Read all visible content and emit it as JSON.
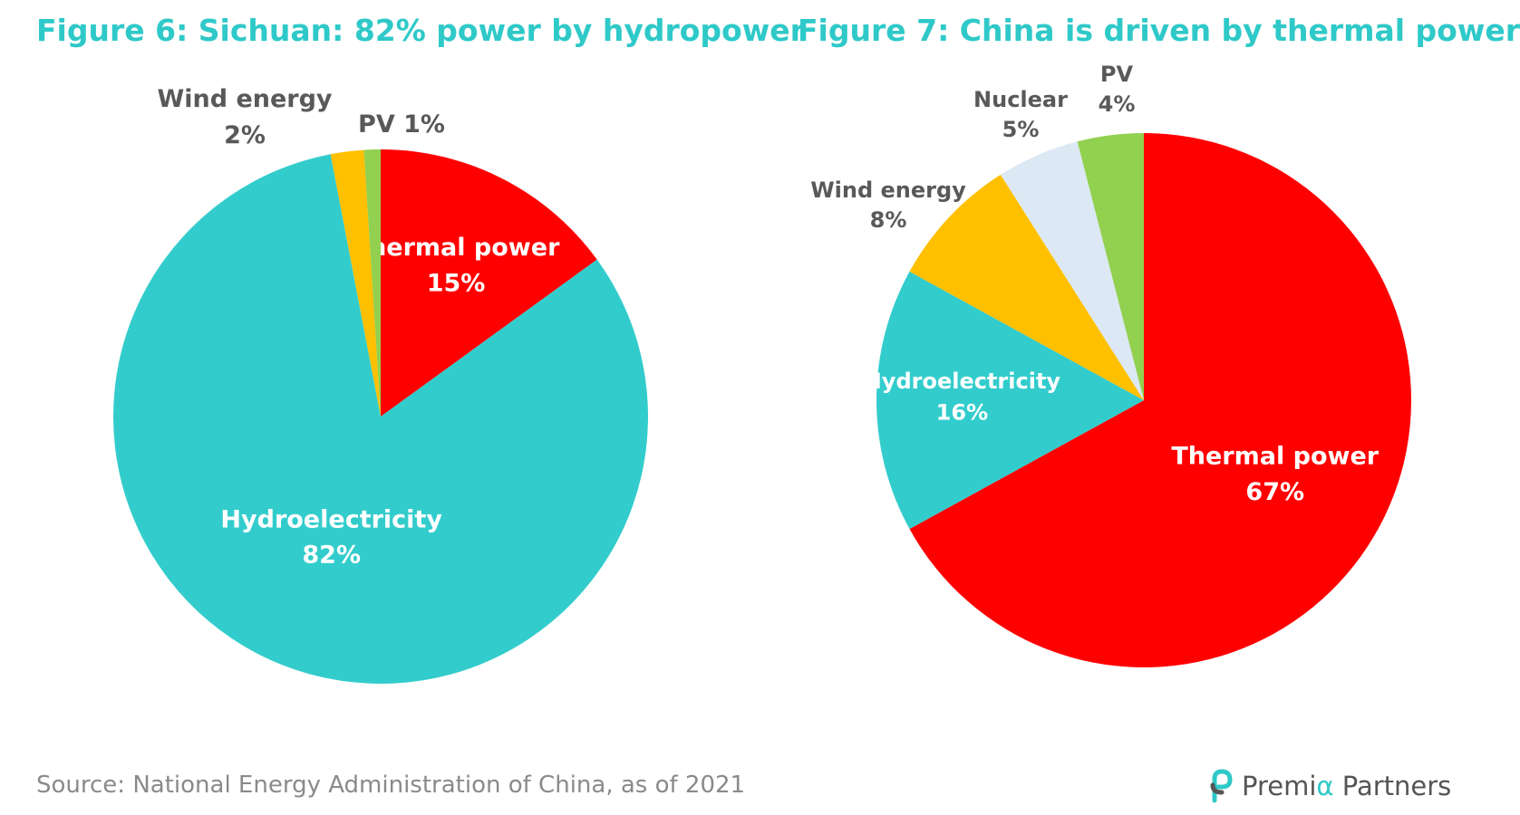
{
  "colors": {
    "title": "#2ec9c8",
    "thermal": "#ff0000",
    "hydro": "#33cccc",
    "wind": "#ffc000",
    "nuclear": "#dde8f5",
    "pv": "#92d050",
    "label_dark": "#595959",
    "label_light": "#ffffff"
  },
  "chart_data": [
    {
      "type": "pie",
      "title": "Figure 6: Sichuan: 82% power by hydropower",
      "unit": "%",
      "slices": [
        {
          "name": "Thermal power",
          "value": 15,
          "display": "15%",
          "color_key": "thermal",
          "label_color": "light"
        },
        {
          "name": "Hydroelectricity",
          "value": 82,
          "display": "82%",
          "color_key": "hydro",
          "label_color": "light"
        },
        {
          "name": "Wind energy",
          "value": 2,
          "display": "2%",
          "color_key": "wind",
          "label_color": "dark"
        },
        {
          "name": "PV",
          "value": 1,
          "display": "1%",
          "color_key": "pv",
          "label_color": "dark",
          "label_inline": true
        }
      ]
    },
    {
      "type": "pie",
      "title": "Figure 7: China is driven by thermal power",
      "unit": "%",
      "slices": [
        {
          "name": "Thermal power",
          "value": 67,
          "display": "67%",
          "color_key": "thermal",
          "label_color": "light"
        },
        {
          "name": "Hydroelectricity",
          "value": 16,
          "display": "16%",
          "color_key": "hydro",
          "label_color": "light"
        },
        {
          "name": "Wind energy",
          "value": 8,
          "display": "8%",
          "color_key": "wind",
          "label_color": "dark"
        },
        {
          "name": "Nuclear",
          "value": 5,
          "display": "5%",
          "color_key": "nuclear",
          "label_color": "dark"
        },
        {
          "name": "PV",
          "value": 4,
          "display": "4%",
          "color_key": "pv",
          "label_color": "dark"
        }
      ]
    }
  ],
  "footer": {
    "source": "Source: National Energy Administration of China, as of 2021",
    "logo_pre": "Premi",
    "logo_alpha": "α",
    "logo_post": " Partners"
  }
}
